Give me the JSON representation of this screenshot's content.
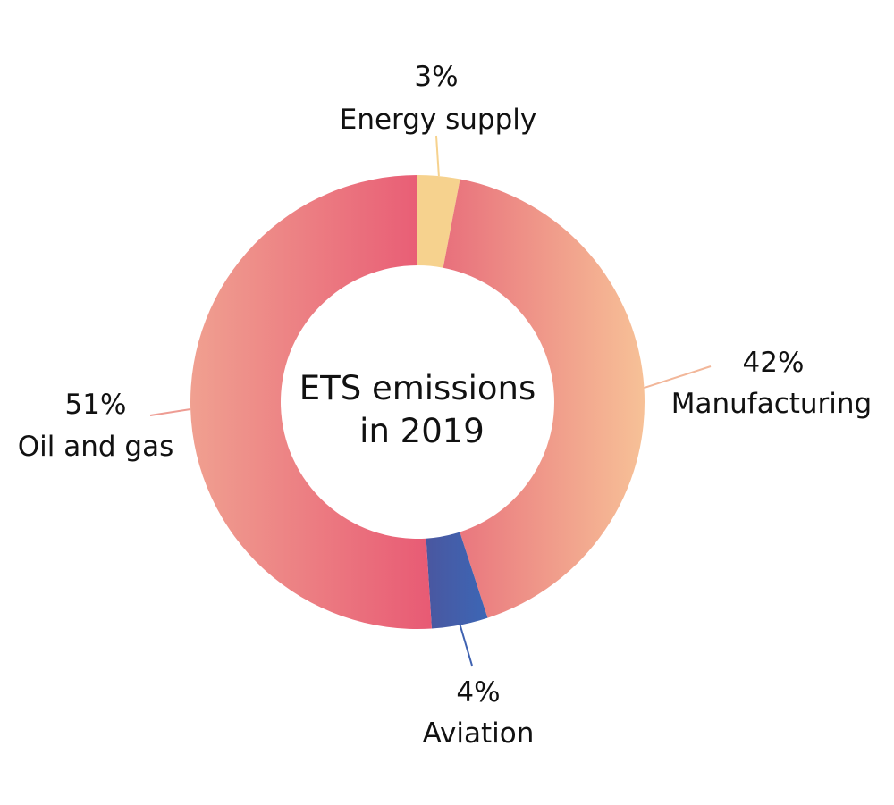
{
  "chart_data": {
    "type": "pie",
    "title": "",
    "center_label": [
      "ETS emissions",
      "in 2019"
    ],
    "slices": [
      {
        "name": "Energy supply",
        "value": 3,
        "label": "3%",
        "color": "#F6D28E"
      },
      {
        "name": "Manufacturing",
        "value": 42,
        "label": "42%",
        "color": "#F0A488"
      },
      {
        "name": "Aviation",
        "value": 4,
        "label": "4%",
        "color": "#3F62B1"
      },
      {
        "name": "Oil and gas",
        "value": 51,
        "label": "51%",
        "color": "#EC6C7D"
      }
    ],
    "colors": {
      "energy_supply": "#F6D28E",
      "manufacturing_start": "#E8707C",
      "manufacturing_end": "#F7C197",
      "aviation_start": "#4A57A0",
      "aviation_end": "#3C66B5",
      "oil_start": "#F0A090",
      "oil_end": "#E85A74"
    }
  }
}
